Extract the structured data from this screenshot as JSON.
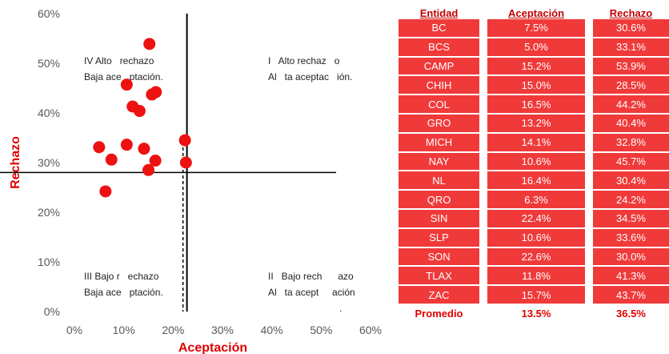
{
  "chart_data": {
    "type": "scatter",
    "xlabel": "Aceptación",
    "ylabel": "Rechazo",
    "xlim": [
      0,
      0.6
    ],
    "ylim": [
      0,
      0.6
    ],
    "x_ticks": [
      "0%",
      "10%",
      "20%",
      "30%",
      "40%",
      "50%",
      "60%"
    ],
    "y_ticks": [
      "0%",
      "10%",
      "20%",
      "30%",
      "40%",
      "50%",
      "60%"
    ],
    "points": [
      {
        "x": 0.075,
        "y": 0.306
      },
      {
        "x": 0.05,
        "y": 0.331
      },
      {
        "x": 0.152,
        "y": 0.539
      },
      {
        "x": 0.15,
        "y": 0.285
      },
      {
        "x": 0.165,
        "y": 0.442
      },
      {
        "x": 0.132,
        "y": 0.404
      },
      {
        "x": 0.141,
        "y": 0.328
      },
      {
        "x": 0.106,
        "y": 0.457
      },
      {
        "x": 0.164,
        "y": 0.304
      },
      {
        "x": 0.063,
        "y": 0.242
      },
      {
        "x": 0.224,
        "y": 0.345
      },
      {
        "x": 0.106,
        "y": 0.336
      },
      {
        "x": 0.226,
        "y": 0.3
      },
      {
        "x": 0.118,
        "y": 0.413
      },
      {
        "x": 0.157,
        "y": 0.437
      }
    ],
    "reference_lines": {
      "vertical_solid": 0.228,
      "vertical_dashed": 0.22,
      "horizontal_solid": 0.28
    },
    "quadrant_labels": {
      "q4_line1": "IV Alto   rechazo",
      "q4_line2": "Baja ace   ptación.",
      "q1_line1": "I   Alto rechaz   o",
      "q1_line2": "Al   ta aceptac   ión.",
      "q3_line1": "III Bajo r   echazo",
      "q3_line2": "Baja ace   ptación.",
      "q2_line1": "II   Bajo rech      azo",
      "q2_line2": "Al   ta acept     ación",
      "q2_line3": "."
    },
    "point_color": "#ee1111",
    "grid": false
  },
  "table": {
    "headers": [
      "Entidad",
      "Aceptación",
      "Rechazo"
    ],
    "rows": [
      [
        "BC",
        "7.5%",
        "30.6%"
      ],
      [
        "BCS",
        "5.0%",
        "33.1%"
      ],
      [
        "CAMP",
        "15.2%",
        "53.9%"
      ],
      [
        "CHIH",
        "15.0%",
        "28.5%"
      ],
      [
        "COL",
        "16.5%",
        "44.2%"
      ],
      [
        "GRO",
        "13.2%",
        "40.4%"
      ],
      [
        "MICH",
        "14.1%",
        "32.8%"
      ],
      [
        "NAY",
        "10.6%",
        "45.7%"
      ],
      [
        "NL",
        "16.4%",
        "30.4%"
      ],
      [
        "QRO",
        "6.3%",
        "24.2%"
      ],
      [
        "SIN",
        "22.4%",
        "34.5%"
      ],
      [
        "SLP",
        "10.6%",
        "33.6%"
      ],
      [
        "SON",
        "22.6%",
        "30.0%"
      ],
      [
        "TLAX",
        "11.8%",
        "41.3%"
      ],
      [
        "ZAC",
        "15.7%",
        "43.7%"
      ]
    ],
    "average": [
      "Promedio",
      "13.5%",
      "36.5%"
    ],
    "row_color": "#f03a3a",
    "header_color": "#c00000"
  }
}
